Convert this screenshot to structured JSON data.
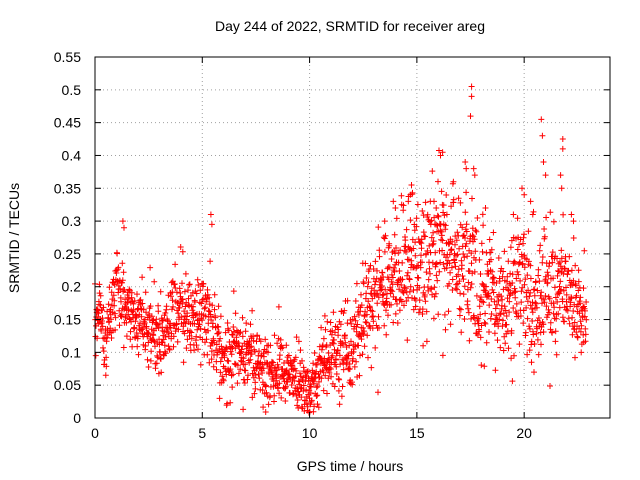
{
  "chart_data": {
    "type": "scatter",
    "title": "Day 244 of 2022, SRMTID for receiver areg",
    "xlabel": "GPS time / hours",
    "ylabel": "SRMTID / TECUs",
    "xlim": [
      0,
      24
    ],
    "ylim": [
      0,
      0.55
    ],
    "x_ticks": [
      0,
      5,
      10,
      15,
      20
    ],
    "y_ticks": [
      0,
      0.05,
      0.1,
      0.15,
      0.2,
      0.25,
      0.3,
      0.35,
      0.4,
      0.45,
      0.5,
      0.55
    ],
    "x_tick_labels": [
      "0",
      "5",
      "10",
      "15",
      "20"
    ],
    "y_tick_labels": [
      "0",
      "0.05",
      "0.1",
      "0.15",
      "0.2",
      "0.25",
      "0.3",
      "0.35",
      "0.4",
      "0.45",
      "0.5",
      "0.55"
    ],
    "grid": true,
    "marker": "plus",
    "series": [
      {
        "name": "SRMTID",
        "color": "#ff0000",
        "trend": [
          [
            0.0,
            0.14
          ],
          [
            0.3,
            0.15
          ],
          [
            0.5,
            0.11
          ],
          [
            1.0,
            0.2
          ],
          [
            1.5,
            0.17
          ],
          [
            2.0,
            0.15
          ],
          [
            2.5,
            0.14
          ],
          [
            3.0,
            0.12
          ],
          [
            3.5,
            0.15
          ],
          [
            4.0,
            0.17
          ],
          [
            4.5,
            0.15
          ],
          [
            5.0,
            0.15
          ],
          [
            5.3,
            0.17
          ],
          [
            5.6,
            0.11
          ],
          [
            6.0,
            0.09
          ],
          [
            6.5,
            0.11
          ],
          [
            7.0,
            0.1
          ],
          [
            7.5,
            0.09
          ],
          [
            8.0,
            0.07
          ],
          [
            8.5,
            0.07
          ],
          [
            9.0,
            0.07
          ],
          [
            9.5,
            0.06
          ],
          [
            10.0,
            0.04
          ],
          [
            10.5,
            0.08
          ],
          [
            11.0,
            0.1
          ],
          [
            11.5,
            0.1
          ],
          [
            12.0,
            0.11
          ],
          [
            12.5,
            0.15
          ],
          [
            13.0,
            0.18
          ],
          [
            13.5,
            0.2
          ],
          [
            14.0,
            0.22
          ],
          [
            14.5,
            0.24
          ],
          [
            15.0,
            0.22
          ],
          [
            15.5,
            0.23
          ],
          [
            16.0,
            0.26
          ],
          [
            16.5,
            0.24
          ],
          [
            17.0,
            0.24
          ],
          [
            17.5,
            0.24
          ],
          [
            18.0,
            0.17
          ],
          [
            18.5,
            0.18
          ],
          [
            19.0,
            0.16
          ],
          [
            19.5,
            0.2
          ],
          [
            20.0,
            0.2
          ],
          [
            20.5,
            0.16
          ],
          [
            21.0,
            0.2
          ],
          [
            21.5,
            0.18
          ],
          [
            22.0,
            0.2
          ],
          [
            22.5,
            0.17
          ],
          [
            22.9,
            0.14
          ]
        ],
        "spread": [
          [
            0.0,
            0.04
          ],
          [
            5.0,
            0.06
          ],
          [
            9.0,
            0.04
          ],
          [
            12.0,
            0.06
          ],
          [
            14.0,
            0.08
          ],
          [
            17.0,
            0.09
          ],
          [
            19.0,
            0.08
          ],
          [
            21.0,
            0.08
          ],
          [
            22.9,
            0.05
          ]
        ],
        "peaks": [
          [
            17.55,
            0.505
          ],
          [
            17.55,
            0.49
          ],
          [
            17.5,
            0.46
          ],
          [
            20.8,
            0.455
          ],
          [
            20.85,
            0.43
          ],
          [
            21.8,
            0.425
          ],
          [
            21.8,
            0.41
          ],
          [
            17.65,
            0.38
          ],
          [
            17.7,
            0.37
          ],
          [
            17.3,
            0.38
          ],
          [
            17.25,
            0.39
          ],
          [
            16.2,
            0.405
          ],
          [
            16.1,
            0.4
          ],
          [
            20.9,
            0.39
          ],
          [
            21.0,
            0.37
          ],
          [
            21.7,
            0.37
          ],
          [
            21.75,
            0.35
          ],
          [
            16.7,
            0.36
          ],
          [
            14.75,
            0.355
          ],
          [
            14.7,
            0.34
          ],
          [
            14.6,
            0.33
          ],
          [
            19.9,
            0.35
          ],
          [
            20.0,
            0.34
          ],
          [
            20.3,
            0.33
          ],
          [
            20.4,
            0.31
          ],
          [
            15.8,
            0.33
          ],
          [
            15.9,
            0.32
          ],
          [
            13.9,
            0.33
          ],
          [
            14.0,
            0.32
          ],
          [
            1.3,
            0.3
          ],
          [
            1.35,
            0.29
          ],
          [
            5.4,
            0.31
          ],
          [
            5.45,
            0.295
          ],
          [
            22.2,
            0.31
          ],
          [
            22.3,
            0.3
          ],
          [
            16.4,
            0.31
          ],
          [
            18.2,
            0.32
          ],
          [
            19.5,
            0.31
          ],
          [
            13.5,
            0.3
          ]
        ]
      }
    ]
  }
}
